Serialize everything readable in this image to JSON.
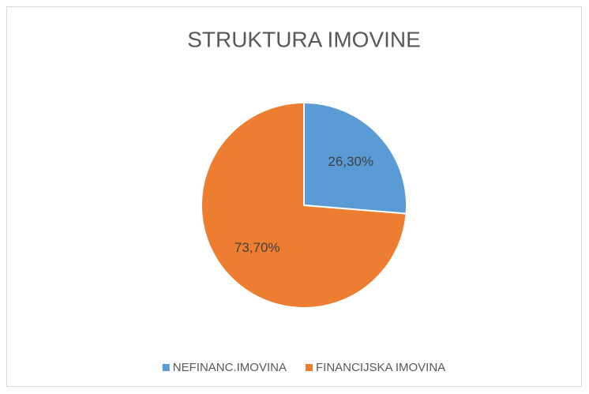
{
  "chart_data": {
    "type": "pie",
    "title": "STRUKTURA IMOVINE",
    "categories": [
      "NEFINANC.IMOVINA",
      "FINANCIJSKA IMOVINA"
    ],
    "values": [
      26.3,
      73.7
    ],
    "value_labels": [
      "26,30%",
      "73,70%"
    ],
    "colors": [
      "#5b9bd5",
      "#ed7d31"
    ],
    "legend": "bottom"
  }
}
